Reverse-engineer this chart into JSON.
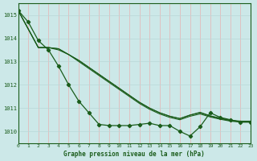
{
  "xlabel": "Graphe pression niveau de la mer (hPa)",
  "ylim": [
    1009.5,
    1015.5
  ],
  "xlim": [
    0,
    23
  ],
  "yticks": [
    1010,
    1011,
    1012,
    1013,
    1014,
    1015
  ],
  "xticks": [
    0,
    1,
    2,
    3,
    4,
    5,
    6,
    7,
    8,
    9,
    10,
    11,
    12,
    13,
    14,
    15,
    16,
    17,
    18,
    19,
    20,
    21,
    22,
    23
  ],
  "bg_color": "#cce8e8",
  "grid_color_v": "#e8b0b0",
  "grid_color_h": "#b8d8d8",
  "line_color": "#1a5c1a",
  "line1_x": [
    0,
    1,
    2,
    3,
    4,
    5,
    6,
    7,
    8,
    9,
    10,
    11,
    12,
    13,
    14,
    15,
    16,
    17,
    18,
    19,
    20,
    21,
    22,
    23
  ],
  "line1_y": [
    1015.2,
    1014.7,
    1013.9,
    1013.5,
    1012.8,
    1012.0,
    1011.3,
    1010.8,
    1010.3,
    1010.25,
    1010.25,
    1010.25,
    1010.3,
    1010.35,
    1010.25,
    1010.25,
    1010.0,
    1009.8,
    1010.2,
    1010.8,
    1010.6,
    1010.5,
    1010.4,
    1010.4
  ],
  "line2_x": [
    0,
    2,
    3,
    4,
    5,
    6,
    7,
    8,
    9,
    10,
    11,
    12,
    13,
    14,
    15,
    16,
    17,
    18,
    19,
    20,
    21,
    22,
    23
  ],
  "line2_y": [
    1015.2,
    1013.6,
    1013.6,
    1013.5,
    1013.3,
    1013.0,
    1012.7,
    1012.4,
    1012.1,
    1011.8,
    1011.5,
    1011.2,
    1010.95,
    1010.75,
    1010.6,
    1010.5,
    1010.65,
    1010.75,
    1010.62,
    1010.52,
    1010.44,
    1010.4,
    1010.4
  ],
  "line3_x": [
    0,
    2,
    3,
    4,
    5,
    6,
    7,
    8,
    9,
    10,
    11,
    12,
    13,
    14,
    15,
    16,
    17,
    18,
    19,
    20,
    21,
    22,
    23
  ],
  "line3_y": [
    1015.2,
    1013.6,
    1013.6,
    1013.55,
    1013.3,
    1013.05,
    1012.75,
    1012.45,
    1012.15,
    1011.85,
    1011.55,
    1011.25,
    1011.0,
    1010.8,
    1010.65,
    1010.55,
    1010.7,
    1010.8,
    1010.65,
    1010.55,
    1010.46,
    1010.42,
    1010.42
  ],
  "line4_x": [
    0,
    2,
    3,
    4,
    5,
    6,
    7,
    8,
    9,
    10,
    11,
    12,
    13,
    14,
    15,
    16,
    17,
    18,
    19,
    20,
    21,
    22,
    23
  ],
  "line4_y": [
    1015.2,
    1013.6,
    1013.6,
    1013.55,
    1013.3,
    1013.05,
    1012.75,
    1012.45,
    1012.15,
    1011.85,
    1011.55,
    1011.25,
    1011.0,
    1010.8,
    1010.65,
    1010.55,
    1010.7,
    1010.82,
    1010.67,
    1010.57,
    1010.48,
    1010.44,
    1010.44
  ]
}
